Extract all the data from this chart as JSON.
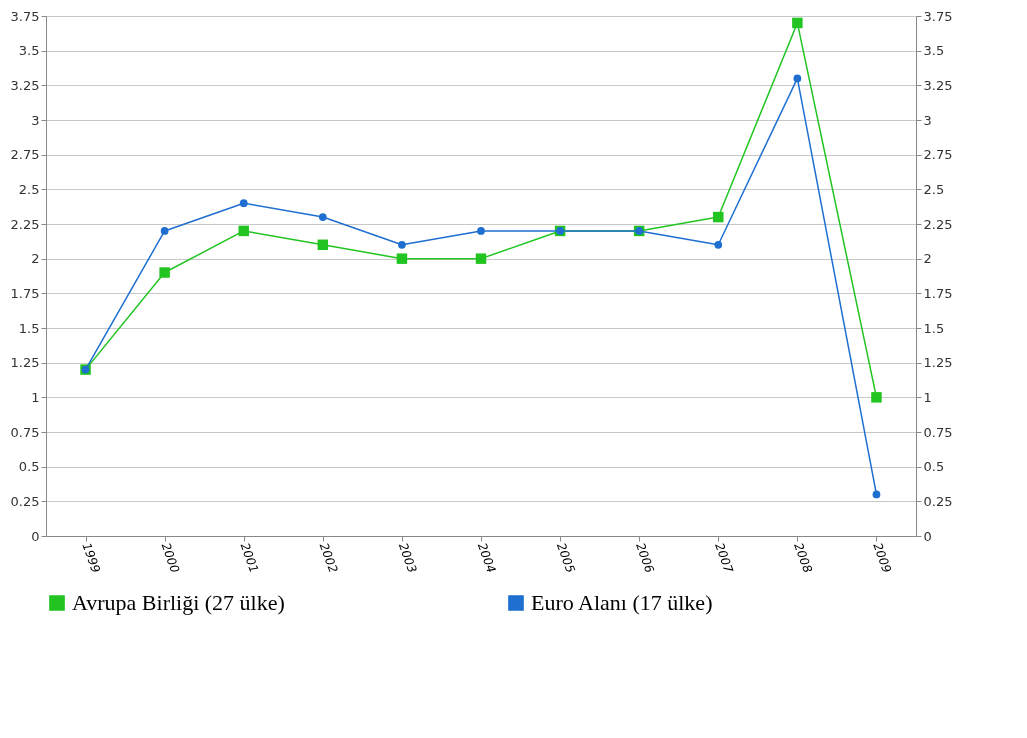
{
  "chart_data": {
    "type": "line",
    "categories": [
      "1999",
      "2000",
      "2001",
      "2002",
      "2003",
      "2004",
      "2005",
      "2006",
      "2007",
      "2008",
      "2009"
    ],
    "series": [
      {
        "name": "Avrupa Birliği (27 ülke)",
        "color": "#22c422",
        "marker": "square",
        "values": [
          1.2,
          1.9,
          2.2,
          2.1,
          2.0,
          2.0,
          2.2,
          2.2,
          2.3,
          3.7,
          1.0
        ]
      },
      {
        "name": "Euro Alanı (17 ülke)",
        "color": "#1f6fd0",
        "marker": "circle",
        "axis": "y2",
        "values": [
          1.2,
          2.2,
          2.4,
          2.3,
          2.1,
          2.2,
          2.2,
          2.2,
          2.1,
          3.3,
          0.3
        ]
      }
    ],
    "ylim": [
      0,
      3.75
    ],
    "yticks": [
      0,
      0.25,
      0.5,
      0.75,
      1,
      1.25,
      1.5,
      1.75,
      2,
      2.25,
      2.5,
      2.75,
      3,
      3.25,
      3.5,
      3.75
    ],
    "y2lim": [
      0,
      3.75
    ],
    "y2ticks": [
      0,
      0.25,
      0.5,
      0.75,
      1,
      1.25,
      1.5,
      1.75,
      2,
      2.25,
      2.5,
      2.75,
      3,
      3.25,
      3.5,
      3.75
    ],
    "grid": "y",
    "legend": "bottom"
  }
}
